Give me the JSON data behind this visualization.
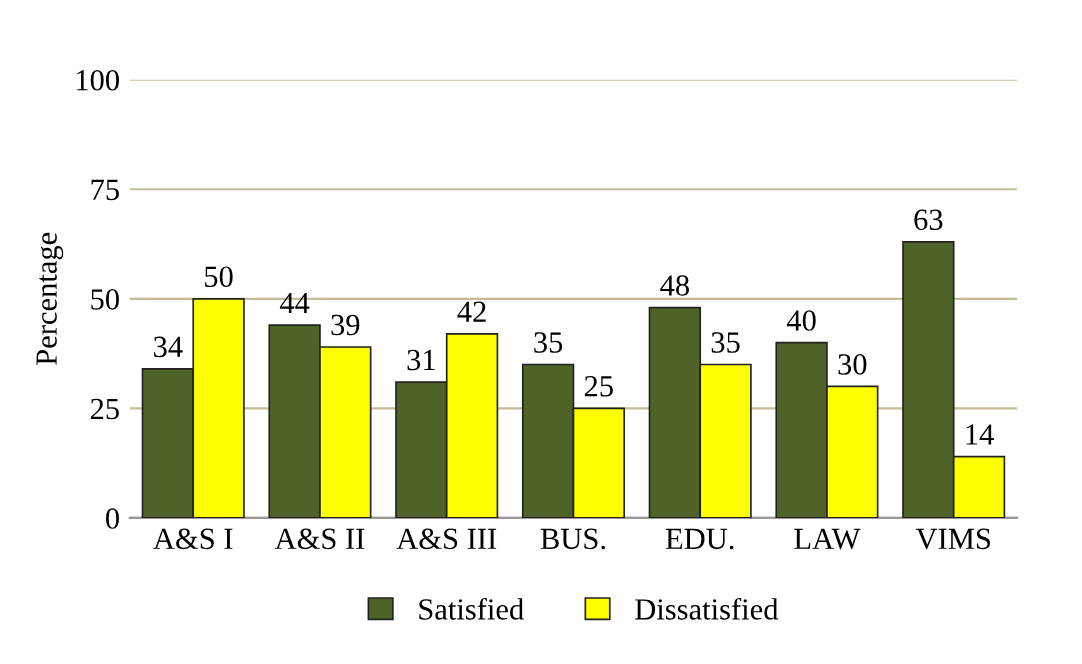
{
  "chart_data": {
    "type": "bar",
    "ylabel": "Percentage",
    "categories": [
      "A&S I",
      "A&S II",
      "A&S III",
      "BUS.",
      "EDU.",
      "LAW",
      "VIMS"
    ],
    "series": [
      {
        "name": "Satisfied",
        "color": "#4f6228",
        "values": [
          34,
          44,
          31,
          35,
          48,
          40,
          63
        ]
      },
      {
        "name": "Dissatisfied",
        "color": "#ffff00",
        "values": [
          50,
          39,
          42,
          25,
          35,
          30,
          14
        ]
      }
    ],
    "ylim": [
      0,
      100
    ],
    "yticks": [
      0,
      25,
      50,
      75,
      100
    ],
    "grid": "y",
    "legend": "bottom",
    "data_labels": true
  }
}
